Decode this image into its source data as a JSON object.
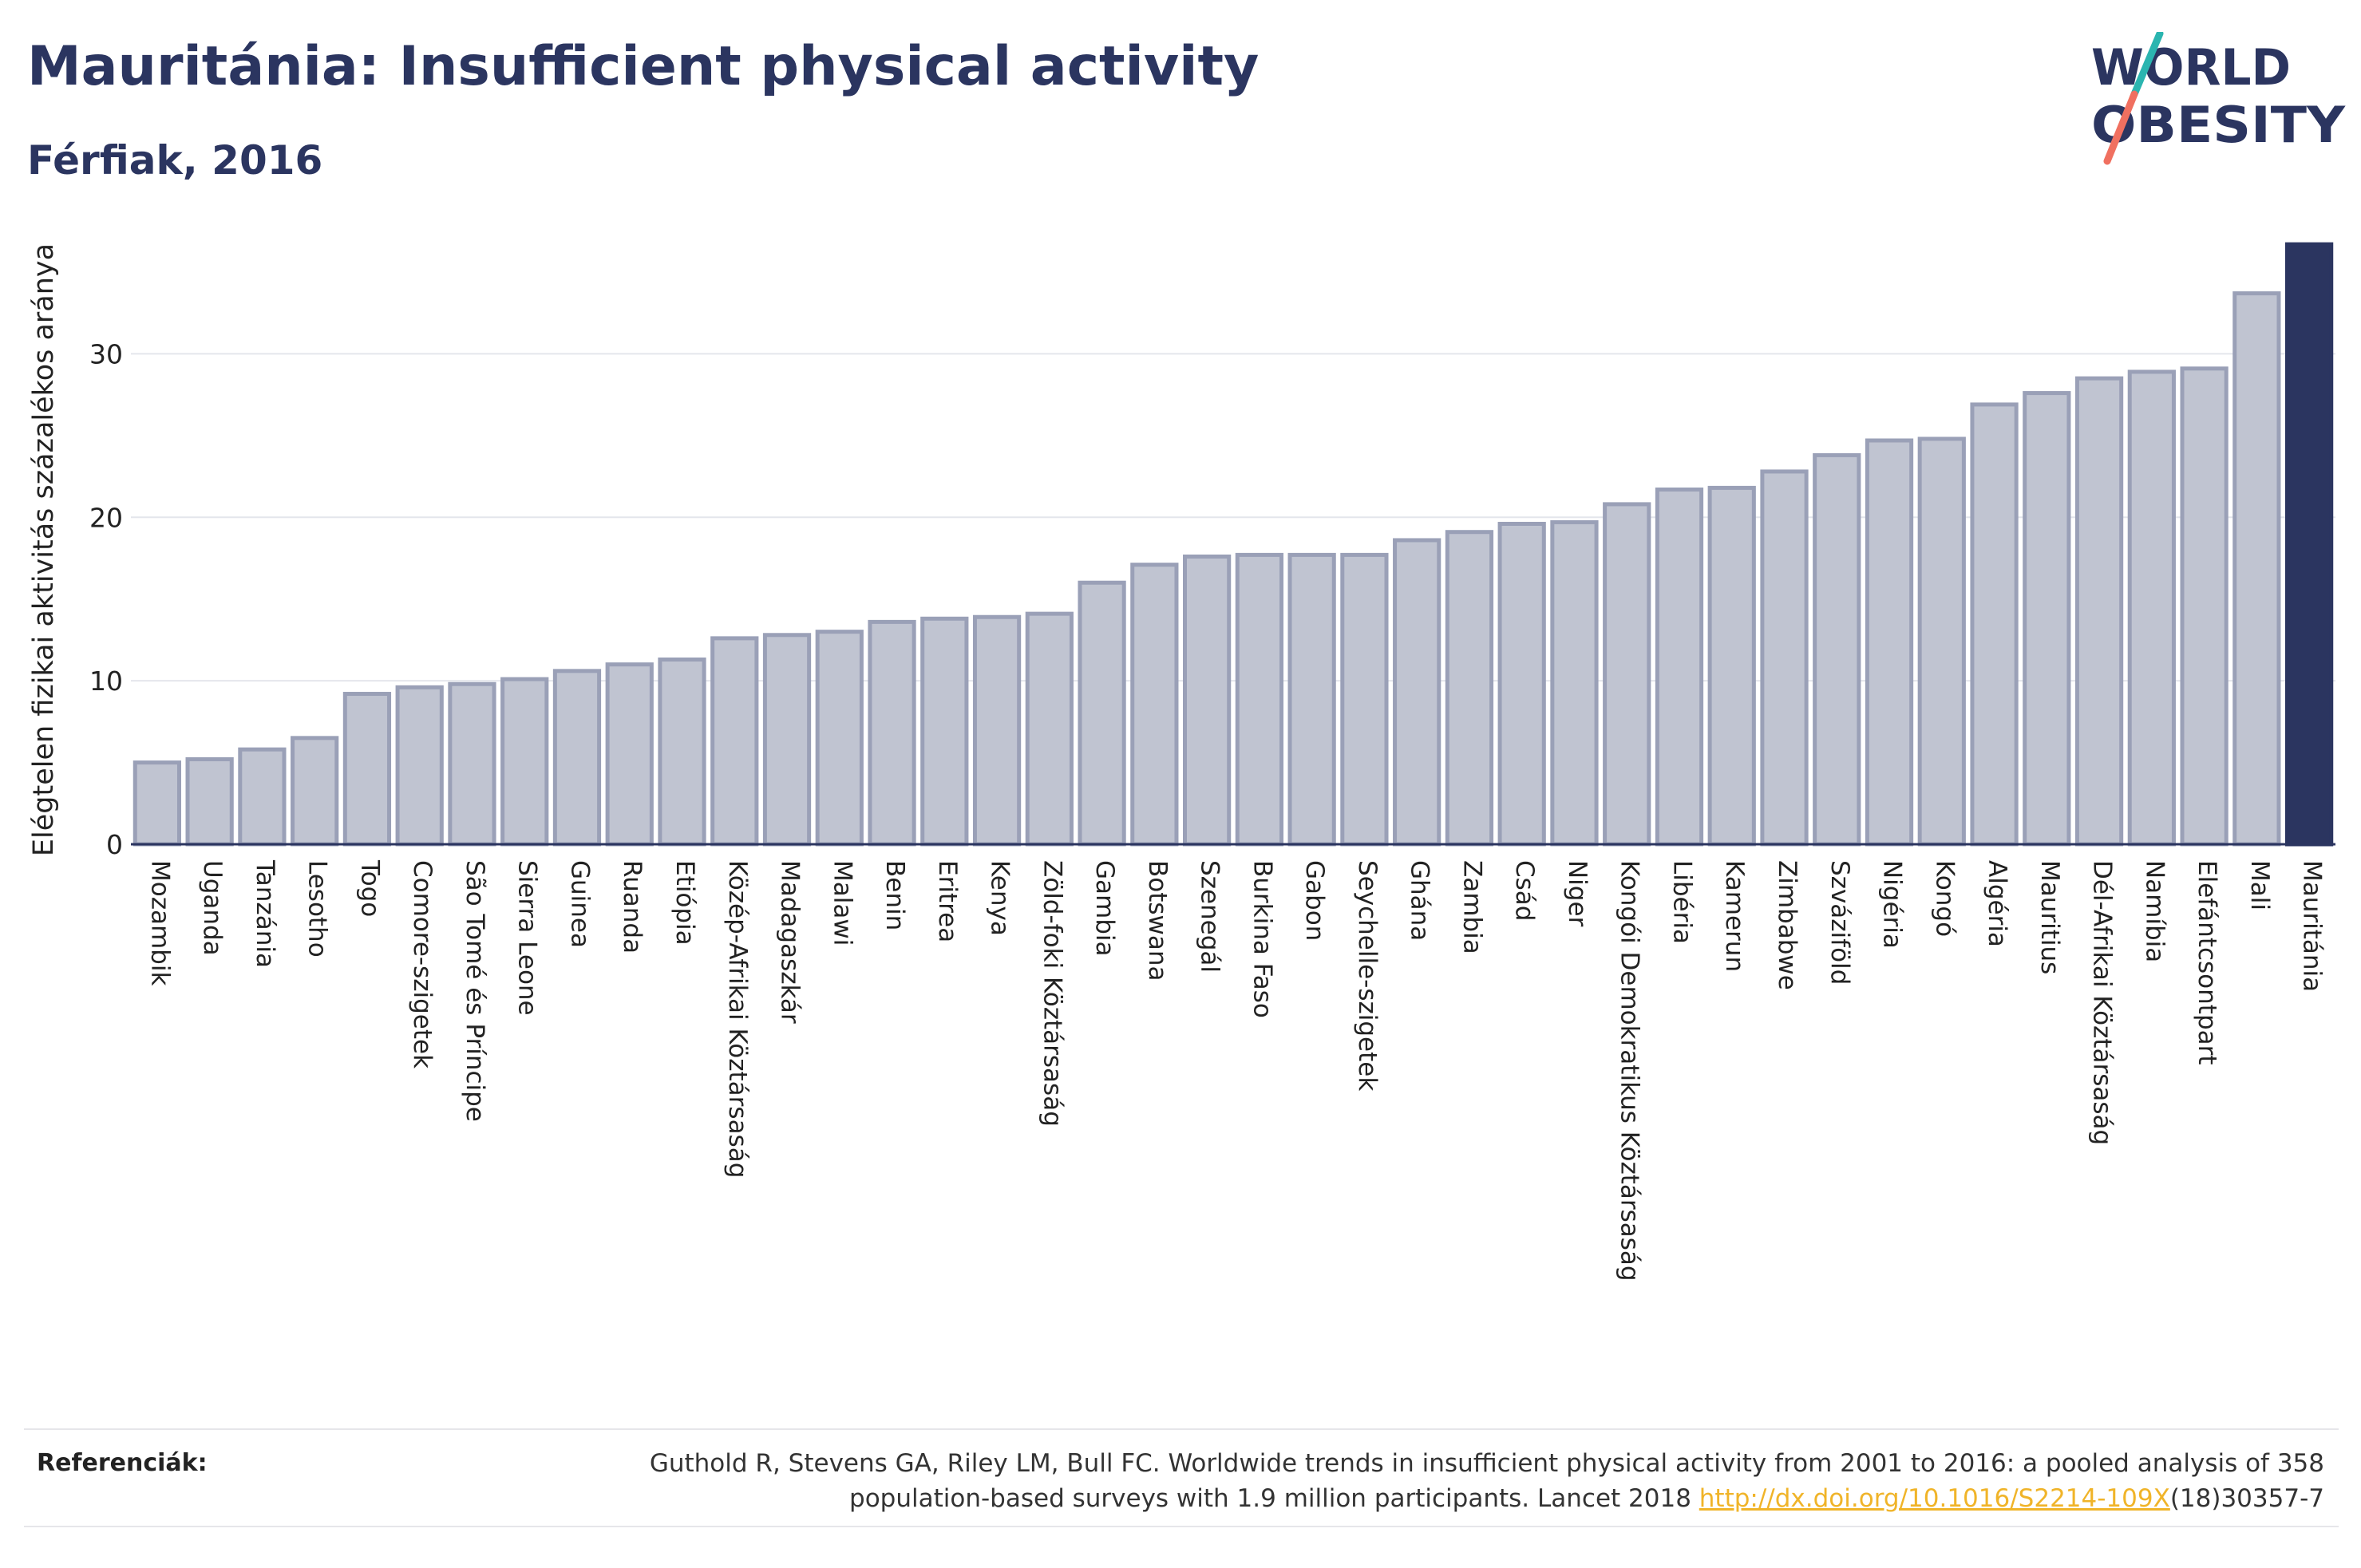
{
  "header": {
    "title": "Mauritánia: Insufficient physical activity",
    "subtitle": "Férfiak, 2016"
  },
  "logo": {
    "line1": "WORLD",
    "line2": "OBESITY",
    "colors": {
      "text": "#2b3560",
      "slash_top": "#2bb5b0",
      "slash_bottom": "#f07060"
    }
  },
  "chart_data": {
    "type": "bar",
    "ylabel": "Elégtelen fizikai aktivitás százalékos aránya",
    "xlabel": "",
    "ylim": [
      0,
      37
    ],
    "yticks": [
      0,
      10,
      20,
      30
    ],
    "grid": true,
    "categories": [
      "Mozambik",
      "Uganda",
      "Tanzánia",
      "Lesotho",
      "Togo",
      "Comore-szigetek",
      "São Tomé és Príncipe",
      "Sierra Leone",
      "Guinea",
      "Ruanda",
      "Etiópia",
      "Közép-Afrikai Köztársaság",
      "Madagaszkár",
      "Malawi",
      "Benin",
      "Eritrea",
      "Kenya",
      "Zöld-foki Köztársaság",
      "Gambia",
      "Botswana",
      "Szenegál",
      "Burkina Faso",
      "Gabon",
      "Seychelle-szigetek",
      "Ghána",
      "Zambia",
      "Csád",
      "Niger",
      "Kongói Demokratikus Köztársaság",
      "Libéria",
      "Kamerun",
      "Zimbabwe",
      "Szváziföld",
      "Nigéria",
      "Kongó",
      "Algéria",
      "Mauritius",
      "Dél-Afrikai Köztársaság",
      "Namíbia",
      "Elefántcsontpart",
      "Mali",
      "Mauritánia"
    ],
    "values": [
      5.0,
      5.2,
      5.8,
      6.5,
      9.2,
      9.6,
      9.8,
      10.1,
      10.6,
      11.0,
      11.3,
      12.6,
      12.8,
      13.0,
      13.6,
      13.8,
      13.9,
      14.1,
      16.0,
      17.1,
      17.6,
      17.7,
      17.7,
      17.7,
      18.6,
      19.1,
      19.6,
      19.7,
      20.8,
      21.7,
      21.8,
      22.8,
      23.8,
      24.7,
      24.8,
      26.9,
      27.6,
      28.5,
      28.9,
      29.1,
      33.7,
      36.7
    ],
    "highlight": "Mauritánia",
    "colors": {
      "bar": "#c0c4d1",
      "bar_edge": "#9aa0b7",
      "highlight": "#2b3560"
    }
  },
  "references": {
    "label": "Referenciák:",
    "text_line1": "Guthold R, Stevens GA, Riley LM, Bull FC. Worldwide trends in insufficient physical activity from 2001 to 2016: a pooled analysis of 358",
    "text_line2_prefix": "population-based surveys with 1.9 million participants. Lancet 2018 ",
    "link": "http://dx.doi.org/10.1016/S2214-109X",
    "text_line2_suffix": "(18)30357-7"
  }
}
